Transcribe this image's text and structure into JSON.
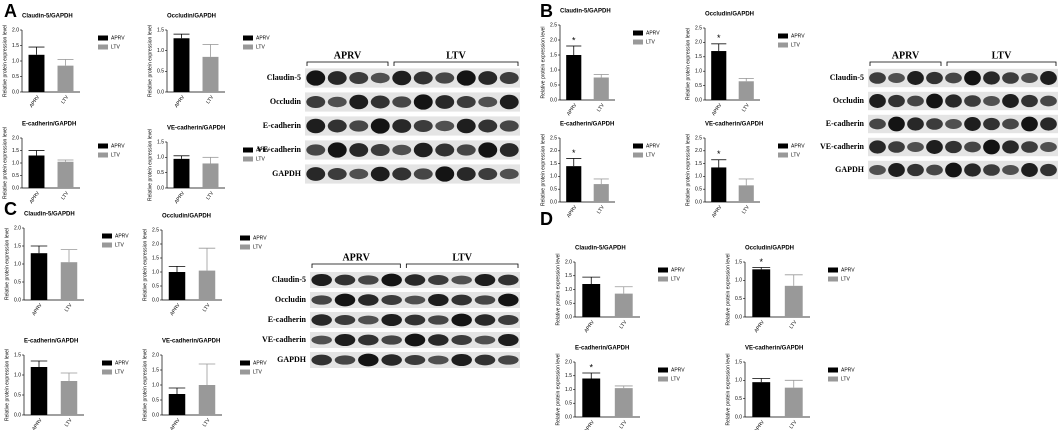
{
  "chart_data": [
    {
      "type": "bar",
      "title": "Claudin-5/GAPDH",
      "ylabel": "Relative protein expression level",
      "categories": [
        "APRV",
        "LTV"
      ],
      "values": [
        1.2,
        0.85
      ],
      "errors": [
        0.25,
        0.2
      ],
      "colors": [
        "#000000",
        "#999999"
      ],
      "legend": [
        "APRV",
        "LTV"
      ],
      "ylim": [
        0,
        2
      ],
      "yticks": [
        {
          "value": 0,
          "label": "0.0"
        },
        {
          "value": 0.5,
          "label": "0.5"
        },
        {
          "value": 1,
          "label": "1.0"
        },
        {
          "value": 1.5,
          "label": "1.5"
        },
        {
          "value": 2,
          "label": "2.0"
        }
      ]
    },
    {
      "type": "bar",
      "title": "Occludin/GAPDH",
      "ylabel": "Relative protein expression level",
      "categories": [
        "APRV",
        "LTV"
      ],
      "values": [
        1.3,
        0.85
      ],
      "errors": [
        0.1,
        0.3
      ],
      "colors": [
        "#000000",
        "#999999"
      ],
      "legend": [
        "APRV",
        "LTV"
      ],
      "ylim": [
        0,
        1.5
      ],
      "yticks": [
        {
          "value": 0,
          "label": "0.0"
        },
        {
          "value": 0.5,
          "label": "0.5"
        },
        {
          "value": 1,
          "label": "1.0"
        },
        {
          "value": 1.5,
          "label": "1.5"
        }
      ]
    },
    {
      "type": "bar",
      "title": "E-cadherin/GAPDH",
      "ylabel": "Relative protein expression level",
      "categories": [
        "APRV",
        "LTV"
      ],
      "values": [
        1.3,
        1.05
      ],
      "errors": [
        0.2,
        0.07
      ],
      "colors": [
        "#000000",
        "#999999"
      ],
      "legend": [
        "APRV",
        "LTV"
      ],
      "ylim": [
        0,
        2
      ],
      "yticks": [
        {
          "value": 0,
          "label": "0.0"
        },
        {
          "value": 0.5,
          "label": "0.5"
        },
        {
          "value": 1,
          "label": "1.0"
        },
        {
          "value": 1.5,
          "label": "1.5"
        },
        {
          "value": 2,
          "label": "2.0"
        }
      ]
    },
    {
      "type": "bar",
      "title": "VE-cadherin/GAPDH",
      "ylabel": "Relative protein expression level",
      "categories": [
        "APRV",
        "LTV"
      ],
      "values": [
        0.95,
        0.8
      ],
      "errors": [
        0.1,
        0.2
      ],
      "colors": [
        "#000000",
        "#999999"
      ],
      "legend": [
        "APRV",
        "LTV"
      ],
      "ylim": [
        0,
        1.5
      ],
      "yticks": [
        {
          "value": 0,
          "label": "0.0"
        },
        {
          "value": 0.5,
          "label": "0.5"
        },
        {
          "value": 1,
          "label": "1.0"
        },
        {
          "value": 1.5,
          "label": "1.5"
        }
      ]
    },
    {
      "type": "bar",
      "title": "Claudin-5/GAPDH",
      "ylabel": "Relative protein expression level",
      "categories": [
        "APRV",
        "LTV"
      ],
      "values": [
        1.5,
        0.75
      ],
      "errors": [
        0.3,
        0.1
      ],
      "colors": [
        "#000000",
        "#999999"
      ],
      "legend": [
        "APRV",
        "LTV"
      ],
      "annotations": [
        "*",
        null
      ],
      "ylim": [
        0,
        2.5
      ],
      "yticks": [
        {
          "value": 0,
          "label": "0.0"
        },
        {
          "value": 0.5,
          "label": "0.5"
        },
        {
          "value": 1,
          "label": "1.0"
        },
        {
          "value": 1.5,
          "label": "1.5"
        },
        {
          "value": 2,
          "label": "2.0"
        },
        {
          "value": 2.5,
          "label": "2.5"
        }
      ]
    },
    {
      "type": "bar",
      "title": "Occludin/GAPDH",
      "ylabel": "Relative protein expression level",
      "categories": [
        "APRV",
        "LTV"
      ],
      "values": [
        1.7,
        0.65
      ],
      "errors": [
        0.25,
        0.1
      ],
      "colors": [
        "#000000",
        "#999999"
      ],
      "legend": [
        "APRV",
        "LTV"
      ],
      "annotations": [
        "*",
        null
      ],
      "ylim": [
        0,
        2.5
      ],
      "yticks": [
        {
          "value": 0,
          "label": "0.0"
        },
        {
          "value": 0.5,
          "label": "0.5"
        },
        {
          "value": 1,
          "label": "1.0"
        },
        {
          "value": 1.5,
          "label": "1.5"
        },
        {
          "value": 2,
          "label": "2.0"
        },
        {
          "value": 2.5,
          "label": "2.5"
        }
      ]
    },
    {
      "type": "bar",
      "title": "E-cadherin/GAPDH",
      "ylabel": "Relative protein expression level",
      "categories": [
        "APRV",
        "LTV"
      ],
      "values": [
        1.4,
        0.7
      ],
      "errors": [
        0.3,
        0.2
      ],
      "colors": [
        "#000000",
        "#999999"
      ],
      "legend": [
        "APRV",
        "LTV"
      ],
      "annotations": [
        "*",
        null
      ],
      "ylim": [
        0,
        2.5
      ],
      "yticks": [
        {
          "value": 0,
          "label": "0.0"
        },
        {
          "value": 0.5,
          "label": "0.5"
        },
        {
          "value": 1,
          "label": "1.0"
        },
        {
          "value": 1.5,
          "label": "1.5"
        },
        {
          "value": 2,
          "label": "2.0"
        },
        {
          "value": 2.5,
          "label": "2.5"
        }
      ]
    },
    {
      "type": "bar",
      "title": "VE-cadherin/GAPDH",
      "ylabel": "Relative protein expression level",
      "categories": [
        "APRV",
        "LTV"
      ],
      "values": [
        1.35,
        0.65
      ],
      "errors": [
        0.3,
        0.25
      ],
      "colors": [
        "#000000",
        "#999999"
      ],
      "legend": [
        "APRV",
        "LTV"
      ],
      "annotations": [
        "*",
        null
      ],
      "ylim": [
        0,
        2.5
      ],
      "yticks": [
        {
          "value": 0,
          "label": "0.0"
        },
        {
          "value": 0.5,
          "label": "0.5"
        },
        {
          "value": 1,
          "label": "1.0"
        },
        {
          "value": 1.5,
          "label": "1.5"
        },
        {
          "value": 2,
          "label": "2.0"
        },
        {
          "value": 2.5,
          "label": "2.5"
        }
      ]
    },
    {
      "type": "bar",
      "title": "Claudin-5/GAPDH",
      "ylabel": "Relative protein expression level",
      "categories": [
        "APRV",
        "LTV"
      ],
      "values": [
        1.3,
        1.05
      ],
      "errors": [
        0.2,
        0.35
      ],
      "colors": [
        "#000000",
        "#999999"
      ],
      "legend": [
        "APRV",
        "LTV"
      ],
      "ylim": [
        0,
        2
      ],
      "yticks": [
        {
          "value": 0,
          "label": "0.0"
        },
        {
          "value": 0.5,
          "label": "0.5"
        },
        {
          "value": 1,
          "label": "1.0"
        },
        {
          "value": 1.5,
          "label": "1.5"
        },
        {
          "value": 2,
          "label": "2.0"
        }
      ]
    },
    {
      "type": "bar",
      "title": "Occludin/GAPDH",
      "ylabel": "Relative protein expression level",
      "categories": [
        "APRV",
        "LTV"
      ],
      "values": [
        1.0,
        1.05
      ],
      "errors": [
        0.2,
        0.8
      ],
      "colors": [
        "#000000",
        "#999999"
      ],
      "legend": [
        "APRV",
        "LTV"
      ],
      "ylim": [
        0,
        2.5
      ],
      "yticks": [
        {
          "value": 0,
          "label": "0.0"
        },
        {
          "value": 0.5,
          "label": "0.5"
        },
        {
          "value": 1,
          "label": "1.0"
        },
        {
          "value": 1.5,
          "label": "1.5"
        },
        {
          "value": 2,
          "label": "2.0"
        },
        {
          "value": 2.5,
          "label": "2.5"
        }
      ]
    },
    {
      "type": "bar",
      "title": "E-cadherin/GAPDH",
      "ylabel": "Relative protein expression level",
      "categories": [
        "APRV",
        "LTV"
      ],
      "values": [
        1.2,
        0.85
      ],
      "errors": [
        0.15,
        0.2
      ],
      "colors": [
        "#000000",
        "#999999"
      ],
      "legend": [
        "APRV",
        "LTV"
      ],
      "ylim": [
        0,
        1.5
      ],
      "yticks": [
        {
          "value": 0,
          "label": "0.0"
        },
        {
          "value": 0.5,
          "label": "0.5"
        },
        {
          "value": 1,
          "label": "1.0"
        },
        {
          "value": 1.5,
          "label": "1.5"
        }
      ]
    },
    {
      "type": "bar",
      "title": "VE-cadherin/GAPDH",
      "ylabel": "Relative protein expression level",
      "categories": [
        "APRV",
        "LTV"
      ],
      "values": [
        0.7,
        1.0
      ],
      "errors": [
        0.2,
        0.7
      ],
      "colors": [
        "#000000",
        "#999999"
      ],
      "legend": [
        "APRV",
        "LTV"
      ],
      "ylim": [
        0,
        2
      ],
      "yticks": [
        {
          "value": 0,
          "label": "0.0"
        },
        {
          "value": 0.5,
          "label": "0.5"
        },
        {
          "value": 1,
          "label": "1.0"
        },
        {
          "value": 1.5,
          "label": "1.5"
        },
        {
          "value": 2,
          "label": "2.0"
        }
      ]
    },
    {
      "type": "bar",
      "title": "Claudin-5/GAPDH",
      "ylabel": "Relative protein expression level",
      "categories": [
        "APRV",
        "LTV"
      ],
      "values": [
        1.2,
        0.85
      ],
      "errors": [
        0.25,
        0.25
      ],
      "colors": [
        "#000000",
        "#999999"
      ],
      "legend": [
        "APRV",
        "LTV"
      ],
      "ylim": [
        0,
        2
      ],
      "yticks": [
        {
          "value": 0,
          "label": "0.0"
        },
        {
          "value": 0.5,
          "label": "0.5"
        },
        {
          "value": 1,
          "label": "1.0"
        },
        {
          "value": 1.5,
          "label": "1.5"
        },
        {
          "value": 2,
          "label": "2.0"
        }
      ]
    },
    {
      "type": "bar",
      "title": "Occludin/GAPDH",
      "ylabel": "Relative protein expression level",
      "categories": [
        "APRV",
        "LTV"
      ],
      "values": [
        1.3,
        0.85
      ],
      "errors": [
        0.05,
        0.3
      ],
      "colors": [
        "#000000",
        "#999999"
      ],
      "legend": [
        "APRV",
        "LTV"
      ],
      "annotations": [
        "*",
        null
      ],
      "ylim": [
        0,
        1.5
      ],
      "yticks": [
        {
          "value": 0,
          "label": "0.0"
        },
        {
          "value": 0.5,
          "label": "0.5"
        },
        {
          "value": 1,
          "label": "1.0"
        },
        {
          "value": 1.5,
          "label": "1.5"
        }
      ]
    },
    {
      "type": "bar",
      "title": "E-cadherin/GAPDH",
      "ylabel": "Relative protein expression level",
      "categories": [
        "APRV",
        "LTV"
      ],
      "values": [
        1.4,
        1.05
      ],
      "errors": [
        0.2,
        0.08
      ],
      "colors": [
        "#000000",
        "#999999"
      ],
      "legend": [
        "APRV",
        "LTV"
      ],
      "annotations": [
        "*",
        null
      ],
      "ylim": [
        0,
        2
      ],
      "yticks": [
        {
          "value": 0,
          "label": "0.0"
        },
        {
          "value": 0.5,
          "label": "0.5"
        },
        {
          "value": 1,
          "label": "1.0"
        },
        {
          "value": 1.5,
          "label": "1.5"
        },
        {
          "value": 2,
          "label": "2.0"
        }
      ]
    },
    {
      "type": "bar",
      "title": "VE-cadherin/GAPDH",
      "ylabel": "Relative protein expression level",
      "categories": [
        "APRV",
        "LTV"
      ],
      "values": [
        0.95,
        0.8
      ],
      "errors": [
        0.1,
        0.2
      ],
      "colors": [
        "#000000",
        "#999999"
      ],
      "legend": [
        "APRV",
        "LTV"
      ],
      "ylim": [
        0,
        1.5
      ],
      "yticks": [
        {
          "value": 0,
          "label": "0.0"
        },
        {
          "value": 0.5,
          "label": "0.5"
        },
        {
          "value": 1,
          "label": "1.0"
        },
        {
          "value": 1.5,
          "label": "1.5"
        }
      ]
    }
  ],
  "panels": [
    {
      "label": "A",
      "blot": {
        "groups": [
          "APRV",
          "LTV"
        ],
        "rows": [
          "Claudin-5",
          "Occludin",
          "E-cadherin",
          "VE-cadherin",
          "GAPDH"
        ]
      }
    },
    {
      "label": "B",
      "blot": {
        "groups": [
          "APRV",
          "LTV"
        ],
        "rows": [
          "Claudin-5",
          "Occludin",
          "E-cadherin",
          "VE-cadherin",
          "GAPDH"
        ]
      }
    },
    {
      "label": "C",
      "blot": {
        "groups": [
          "APRV",
          "LTV"
        ],
        "rows": [
          "Claudin-5",
          "Occludin",
          "E-cadherin",
          "VE-cadherin",
          "GAPDH"
        ]
      }
    },
    {
      "label": "D"
    }
  ]
}
